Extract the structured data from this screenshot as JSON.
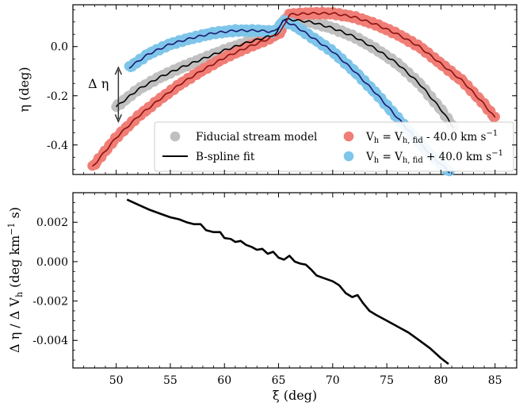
{
  "chart_data": [
    {
      "type": "scatter",
      "panel": "top",
      "title": "",
      "ylabel": "η (deg)",
      "xlim": [
        46,
        87
      ],
      "ylim": [
        -0.52,
        0.17
      ],
      "xticks": [
        50,
        55,
        60,
        65,
        70,
        75,
        80,
        85
      ],
      "yticks": [
        0.0,
        -0.2,
        -0.4
      ],
      "ytick_labels": [
        "0.0",
        "-0.2",
        "-0.4"
      ],
      "annotation": {
        "text": "Δ η",
        "x": 50.2,
        "y_from": -0.085,
        "y_to": -0.305
      },
      "legend": {
        "placement": "lower-right",
        "entries": [
          {
            "label": "Fiducial stream model",
            "kind": "marker",
            "color": "#c0c0c0"
          },
          {
            "label": "B-spline fit",
            "kind": "line",
            "color": "#000000"
          },
          {
            "label_main": "V",
            "label_sub": "h",
            "label_rest": " = V",
            "label_sub2": "h, fid",
            "label_tail": " - 40.0 km s",
            "label_sup": "−1",
            "kind": "marker",
            "color": "#f07e76"
          },
          {
            "label_main": "V",
            "label_sub": "h",
            "label_rest": " = V",
            "label_sub2": "h, fid",
            "label_tail": " + 40.0 km s",
            "label_sup": "−1",
            "kind": "marker",
            "color": "#7ec5ea"
          }
        ]
      },
      "series": [
        {
          "name": "Fiducial stream model",
          "color": "#c0c0c0",
          "fit_color": "#000000",
          "x": [
            50.0,
            52.0,
            54.0,
            56.0,
            58.0,
            60.0,
            62.0,
            64.0,
            64.8,
            65.4,
            66.0,
            68.0,
            70.0,
            72.0,
            74.0,
            76.0,
            78.0,
            80.0,
            81.2
          ],
          "y": [
            -0.245,
            -0.175,
            -0.125,
            -0.085,
            -0.05,
            -0.015,
            0.015,
            0.04,
            0.05,
            0.11,
            0.11,
            0.1,
            0.075,
            0.04,
            -0.01,
            -0.07,
            -0.15,
            -0.255,
            -0.33
          ]
        },
        {
          "name": "V_h = V_h,fid - 40.0 km s^-1",
          "color": "#f07e76",
          "fit_color": "#8b1010",
          "x": [
            47.8,
            50.0,
            52.0,
            54.0,
            56.0,
            58.0,
            60.0,
            62.0,
            64.0,
            65.2,
            66.0,
            68.0,
            70.0,
            72.0,
            74.0,
            76.0,
            78.0,
            80.0,
            82.0,
            84.0,
            85.0
          ],
          "y": [
            -0.49,
            -0.37,
            -0.285,
            -0.215,
            -0.15,
            -0.095,
            -0.045,
            -0.005,
            0.03,
            0.06,
            0.13,
            0.135,
            0.135,
            0.12,
            0.09,
            0.05,
            0.0,
            -0.07,
            -0.14,
            -0.235,
            -0.29
          ]
        },
        {
          "name": "V_h = V_h,fid + 40.0 km s^-1",
          "color": "#7ec5ea",
          "fit_color": "#1a1a70",
          "x": [
            51.2,
            53.0,
            55.0,
            57.0,
            59.0,
            61.0,
            63.0,
            64.6,
            65.5,
            66.5,
            68.0,
            70.0,
            72.0,
            74.0,
            76.0,
            78.0,
            79.5,
            80.8
          ],
          "y": [
            -0.085,
            -0.03,
            0.01,
            0.035,
            0.055,
            0.065,
            0.065,
            0.06,
            0.105,
            0.085,
            0.04,
            -0.02,
            -0.1,
            -0.19,
            -0.29,
            -0.39,
            -0.46,
            -0.51
          ]
        }
      ]
    },
    {
      "type": "line",
      "panel": "bottom",
      "title": "",
      "xlabel": "ξ (deg)",
      "ylabel_main": "Δ η / Δ V",
      "ylabel_sub": "h",
      "ylabel_mid": " (deg km",
      "ylabel_sup": "−1",
      "ylabel_tail": " s)",
      "xlim": [
        46,
        87
      ],
      "ylim": [
        -0.0054,
        0.0035
      ],
      "xticks": [
        50,
        55,
        60,
        65,
        70,
        75,
        80,
        85
      ],
      "xtick_labels": [
        "50",
        "55",
        "60",
        "65",
        "70",
        "75",
        "80",
        "85"
      ],
      "yticks": [
        0.002,
        0.0,
        -0.002,
        -0.004
      ],
      "ytick_labels": [
        "0.002",
        "0.000",
        "-0.002",
        "-0.004"
      ],
      "series": [
        {
          "name": "Δη/ΔV_h",
          "color": "#000000",
          "x": [
            51.0,
            52.0,
            53.0,
            54.0,
            55.0,
            55.8,
            56.5,
            57.2,
            57.8,
            58.3,
            59.0,
            59.6,
            60.0,
            60.6,
            61.0,
            61.5,
            62.0,
            62.5,
            63.0,
            63.5,
            64.0,
            64.5,
            65.0,
            65.5,
            66.0,
            66.5,
            67.0,
            67.5,
            68.0,
            68.5,
            69.0,
            70.0,
            70.6,
            71.2,
            71.8,
            72.3,
            72.8,
            73.4,
            74.0,
            75.0,
            76.0,
            77.0,
            78.0,
            79.0,
            80.0,
            80.7
          ],
          "y": [
            0.00315,
            0.0029,
            0.00265,
            0.00245,
            0.00225,
            0.00215,
            0.002,
            0.0019,
            0.0019,
            0.0016,
            0.0015,
            0.0015,
            0.0012,
            0.00115,
            0.001,
            0.00105,
            0.00085,
            0.00075,
            0.0006,
            0.00065,
            0.0004,
            0.0005,
            0.0002,
            0.0001,
            0.0003,
            0.0,
            -0.0001,
            -0.00015,
            -0.0004,
            -0.0007,
            -0.0008,
            -0.001,
            -0.0012,
            -0.0016,
            -0.0018,
            -0.0017,
            -0.0021,
            -0.0025,
            -0.0027,
            -0.003,
            -0.0033,
            -0.0036,
            -0.004,
            -0.0044,
            -0.0049,
            -0.0052
          ]
        }
      ]
    }
  ]
}
